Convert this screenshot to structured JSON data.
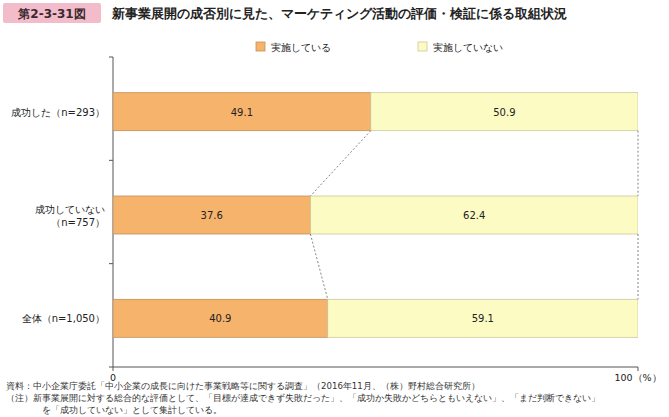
{
  "chart_data": {
    "type": "bar",
    "orientation": "horizontal",
    "stacked": true,
    "data_labels": true,
    "grid": false,
    "legend": "top",
    "figure_number": "第2-3-31図",
    "title": "新事業展開の成否別に見た、マーケティング活動の評価・検証に係る取組状況",
    "categories": [
      "成功した（n=293）",
      "成功していない（n=757）",
      "全体（n=1,050）"
    ],
    "series": [
      {
        "name": "実施している",
        "color": "#f5b36c",
        "values": [
          49.1,
          37.6,
          40.9
        ]
      },
      {
        "name": "実施していない",
        "color": "#fdfbc4",
        "values": [
          50.9,
          62.4,
          59.1
        ]
      }
    ],
    "xlim": [
      0,
      100
    ],
    "xticks": [
      0,
      {
        "value": 100,
        "label": "100（%）"
      }
    ],
    "annotations": [
      "資料：中小企業庁委託「中小企業の成長に向けた事業戦略等に関する調査」（2016年11月、（株）野村総合研究所）",
      "（注）新事業展開に対する総合的な評価として、「目標が達成できず失敗だった」、「成功か失敗かどちらともいえない」、「まだ判断できない」",
      "を「成功していない」として集計している。"
    ]
  }
}
